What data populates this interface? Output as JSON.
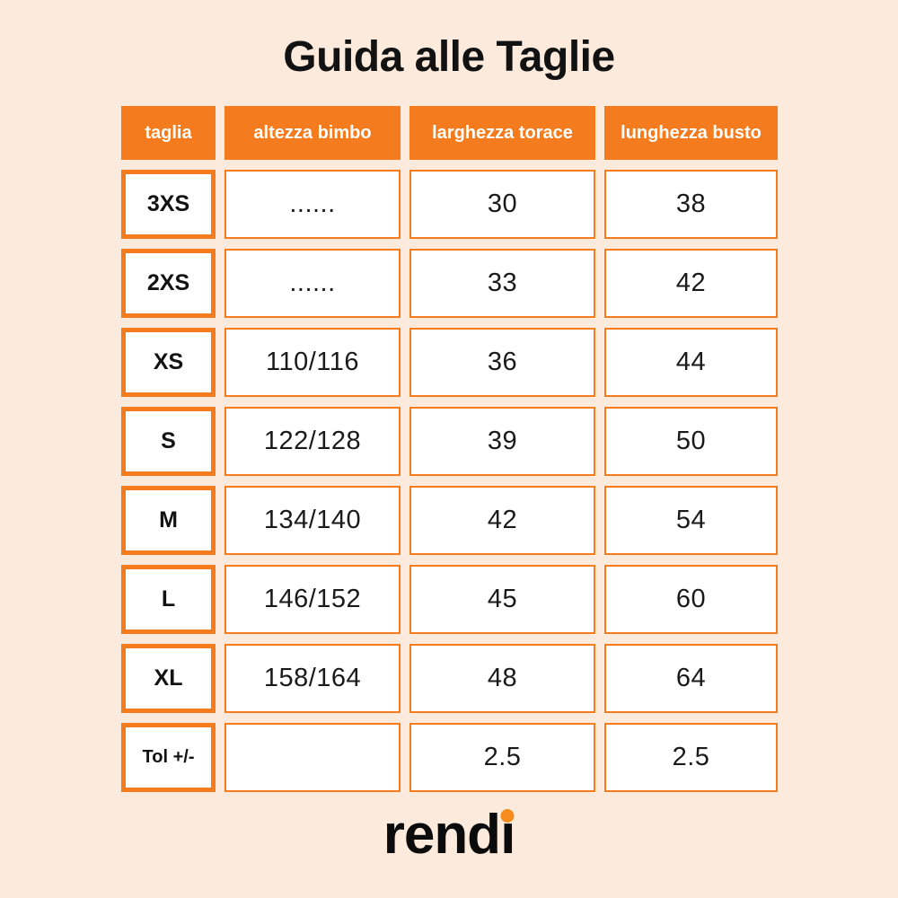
{
  "page": {
    "title": "Guida alle Taglie",
    "background_color": "#FCEBDC",
    "accent_color": "#F47C1F"
  },
  "table": {
    "headers": [
      "taglia",
      "altezza bimbo",
      "larghezza torace",
      "lunghezza busto"
    ],
    "rows": [
      {
        "label": "3XS",
        "cells": [
          "......",
          "30",
          "38"
        ]
      },
      {
        "label": "2XS",
        "cells": [
          "......",
          "33",
          "42"
        ]
      },
      {
        "label": "XS",
        "cells": [
          "110/116",
          "36",
          "44"
        ]
      },
      {
        "label": "S",
        "cells": [
          "122/128",
          "39",
          "50"
        ]
      },
      {
        "label": "M",
        "cells": [
          "134/140",
          "42",
          "54"
        ]
      },
      {
        "label": "L",
        "cells": [
          "146/152",
          "45",
          "60"
        ]
      },
      {
        "label": "XL",
        "cells": [
          "158/164",
          "48",
          "64"
        ]
      },
      {
        "label": "Tol +/-",
        "cells": [
          "",
          "2.5",
          "2.5"
        ]
      }
    ]
  },
  "logo": {
    "text": "rendi",
    "prefix": "rend",
    "i_base": "ı",
    "dot_color": "#F78C1E"
  },
  "chart_data": {
    "type": "table",
    "title": "Guida alle Taglie",
    "columns": [
      "taglia",
      "altezza bimbo",
      "larghezza torace",
      "lunghezza busto"
    ],
    "rows": [
      [
        "3XS",
        "......",
        30,
        38
      ],
      [
        "2XS",
        "......",
        33,
        42
      ],
      [
        "XS",
        "110/116",
        36,
        44
      ],
      [
        "S",
        "122/128",
        39,
        50
      ],
      [
        "M",
        "134/140",
        42,
        54
      ],
      [
        "L",
        "146/152",
        45,
        60
      ],
      [
        "XL",
        "158/164",
        48,
        64
      ],
      [
        "Tol +/-",
        "",
        2.5,
        2.5
      ]
    ]
  }
}
